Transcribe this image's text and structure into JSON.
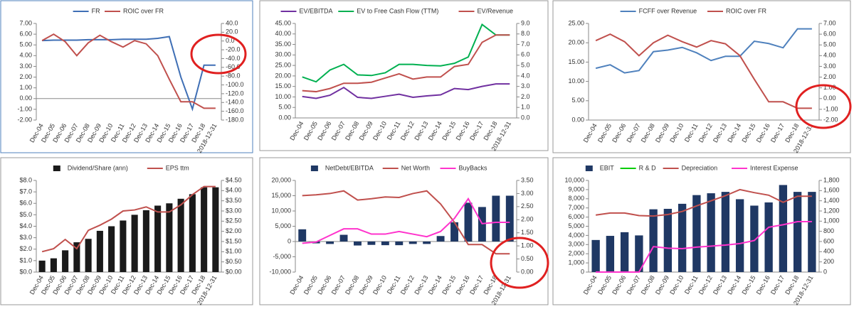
{
  "chart_data": [
    {
      "type": "line",
      "categories": [
        "Dec-04",
        "Dec-05",
        "Dec-06",
        "Dec-07",
        "Dec-08",
        "Dec-09",
        "Dec-10",
        "Dec-11",
        "Dec-12",
        "Dec-13",
        "Dec-14",
        "Dec-15",
        "Dec-16",
        "Dec-17",
        "Dec-18",
        "2018-12-31"
      ],
      "series": [
        {
          "name": "FR",
          "color": "#3f6fb5",
          "axis": "y2",
          "values": [
            1,
            2,
            2,
            2,
            3,
            3,
            3,
            4,
            4,
            4,
            6,
            10,
            -82,
            -155,
            -55,
            -55
          ]
        },
        {
          "name": "ROIC over FR",
          "color": "#c0504d",
          "values": [
            5.4,
            6.0,
            5.3,
            4.0,
            5.2,
            5.9,
            5.3,
            4.8,
            5.4,
            5.1,
            4.0,
            1.8,
            -0.3,
            -0.3,
            -0.9,
            -0.9
          ]
        }
      ],
      "ylim": [
        -2,
        7
      ],
      "yticks": [
        {
          "value": -2,
          "label": "-2.00"
        },
        {
          "value": -1,
          "label": "-1.00"
        },
        {
          "value": 0,
          "label": "0.00"
        },
        {
          "value": 1,
          "label": "1.00"
        },
        {
          "value": 2,
          "label": "2.00"
        },
        {
          "value": 3,
          "label": "3.00"
        },
        {
          "value": 4,
          "label": "4.00"
        },
        {
          "value": 5,
          "label": "5.00"
        },
        {
          "value": 6,
          "label": "6.00"
        },
        {
          "value": 7,
          "label": "7.00"
        }
      ],
      "y2lim": [
        -180,
        40
      ],
      "y2ticks": [
        {
          "value": -180,
          "label": "-180.0"
        },
        {
          "value": -160,
          "label": "-160.0"
        },
        {
          "value": -140,
          "label": "-140.0"
        },
        {
          "value": -120,
          "label": "-120.0"
        },
        {
          "value": -100,
          "label": "-100.0"
        },
        {
          "value": -80,
          "label": "-80.0"
        },
        {
          "value": -60,
          "label": "-60.0"
        },
        {
          "value": -40,
          "label": "-40.0"
        },
        {
          "value": -20,
          "label": "-20.0"
        },
        {
          "value": 0,
          "label": "0.0"
        },
        {
          "value": 20,
          "label": "20.0"
        },
        {
          "value": 40,
          "label": "40.0"
        }
      ]
    },
    {
      "type": "line",
      "categories": [
        "Dec-04",
        "Dec-05",
        "Dec-06",
        "Dec-07",
        "Dec-08",
        "Dec-09",
        "Dec-10",
        "Dec-11",
        "Dec-12",
        "Dec-13",
        "Dec-14",
        "Dec-15",
        "Dec-16",
        "Dec-17",
        "Dec-18",
        "2018-12-31"
      ],
      "series": [
        {
          "name": "EV/EBITDA",
          "color": "#7030a0",
          "values": [
            10.2,
            9.3,
            10.8,
            14.5,
            9.8,
            9.3,
            10.3,
            11.3,
            9.8,
            10.5,
            11,
            14,
            13.5,
            15,
            16.2,
            16.2
          ]
        },
        {
          "name": "EV to Free Cash Flow (TTM)",
          "color": "#00b050",
          "values": [
            19.5,
            17.2,
            22.8,
            25.5,
            20.5,
            20.2,
            21.5,
            25.5,
            25.5,
            25,
            24.8,
            26,
            29,
            44.5,
            39.5,
            39.5
          ]
        },
        {
          "name": "EV/Revenue",
          "color": "#c0504d",
          "axis": "y2",
          "values": [
            2.6,
            2.5,
            2.8,
            3.3,
            3.3,
            3.4,
            3.8,
            4.2,
            3.7,
            3.9,
            3.9,
            4.9,
            5.1,
            7.2,
            7.9,
            7.9
          ]
        }
      ],
      "ylim": [
        0,
        45
      ],
      "yticks": [
        {
          "value": 0,
          "label": "0.00"
        },
        {
          "value": 5,
          "label": "5.00"
        },
        {
          "value": 10,
          "label": "10.00"
        },
        {
          "value": 15,
          "label": "15.00"
        },
        {
          "value": 20,
          "label": "20.00"
        },
        {
          "value": 25,
          "label": "25.00"
        },
        {
          "value": 30,
          "label": "30.00"
        },
        {
          "value": 35,
          "label": "35.00"
        },
        {
          "value": 40,
          "label": "40.00"
        },
        {
          "value": 45,
          "label": "45.00"
        }
      ],
      "y2lim": [
        0,
        9
      ],
      "y2ticks": [
        {
          "value": 0,
          "label": "0.0"
        },
        {
          "value": 1,
          "label": "1.0"
        },
        {
          "value": 2,
          "label": "2.0"
        },
        {
          "value": 3,
          "label": "3.0"
        },
        {
          "value": 4,
          "label": "4.0"
        },
        {
          "value": 5,
          "label": "5.0"
        },
        {
          "value": 6,
          "label": "6.0"
        },
        {
          "value": 7,
          "label": "7.0"
        },
        {
          "value": 8,
          "label": "8.0"
        },
        {
          "value": 9,
          "label": "9.0"
        }
      ]
    },
    {
      "type": "line",
      "categories": [
        "Dec-04",
        "Dec-05",
        "Dec-06",
        "Dec-07",
        "Dec-08",
        "Dec-09",
        "Dec-10",
        "Dec-11",
        "Dec-12",
        "Dec-13",
        "Dec-14",
        "Dec-15",
        "Dec-16",
        "Dec-17",
        "Dec-18",
        "2018-12-31"
      ],
      "series": [
        {
          "name": "FCFF over Revenue",
          "color": "#4f81bd",
          "values": [
            13.4,
            14.3,
            12.2,
            12.8,
            17.7,
            18.1,
            18.8,
            17.4,
            15.4,
            16.5,
            16.5,
            20.4,
            19.8,
            18.7,
            23.6,
            23.6
          ]
        },
        {
          "name": "ROIC over FR",
          "color": "#c0504d",
          "axis": "y2",
          "values": [
            5.4,
            6.0,
            5.3,
            4.0,
            5.2,
            5.9,
            5.3,
            4.8,
            5.4,
            5.1,
            4.0,
            1.8,
            -0.3,
            -0.3,
            -0.9,
            -0.9
          ]
        }
      ],
      "ylim": [
        0,
        25
      ],
      "yticks": [
        {
          "value": 0,
          "label": "0.00"
        },
        {
          "value": 5,
          "label": "5.00"
        },
        {
          "value": 10,
          "label": "10.00"
        },
        {
          "value": 15,
          "label": "15.00"
        },
        {
          "value": 20,
          "label": "20.00"
        },
        {
          "value": 25,
          "label": "25.00"
        }
      ],
      "y2lim": [
        -2,
        7
      ],
      "y2ticks": [
        {
          "value": -2,
          "label": "-2.00"
        },
        {
          "value": -1,
          "label": "-1.00"
        },
        {
          "value": 0,
          "label": "0.00"
        },
        {
          "value": 1,
          "label": "1.00"
        },
        {
          "value": 2,
          "label": "2.00"
        },
        {
          "value": 3,
          "label": "3.00"
        },
        {
          "value": 4,
          "label": "4.00"
        },
        {
          "value": 5,
          "label": "5.00"
        },
        {
          "value": 6,
          "label": "6.00"
        },
        {
          "value": 7,
          "label": "7.00"
        }
      ]
    },
    {
      "type": "combo",
      "categories": [
        "Dec-04",
        "Dec-05",
        "Dec-06",
        "Dec-07",
        "Dec-08",
        "Dec-09",
        "Dec-10",
        "Dec-11",
        "Dec-12",
        "Dec-13",
        "Dec-14",
        "Dec-15",
        "Dec-16",
        "Dec-17",
        "Dec-18",
        "2018-12-31"
      ],
      "series": [
        {
          "name": "Dividend/Share (ann)",
          "type": "bar",
          "color": "#1a1a1a",
          "values": [
            1.0,
            1.2,
            1.9,
            2.6,
            2.9,
            3.6,
            4.0,
            4.5,
            5.0,
            5.4,
            5.8,
            6.0,
            6.4,
            6.8,
            7.4,
            7.4
          ]
        },
        {
          "name": "EPS ttm",
          "type": "line",
          "color": "#c0504d",
          "axis": "y2",
          "values": [
            1.0,
            1.15,
            1.6,
            1.15,
            2.05,
            2.3,
            2.6,
            3.0,
            3.05,
            3.2,
            2.95,
            2.95,
            3.3,
            3.8,
            4.2,
            4.2
          ]
        }
      ],
      "ylim": [
        0,
        8
      ],
      "yticks": [
        {
          "value": 0,
          "label": "$0.0"
        },
        {
          "value": 1,
          "label": "$1.0"
        },
        {
          "value": 2,
          "label": "$2.0"
        },
        {
          "value": 3,
          "label": "$3.0"
        },
        {
          "value": 4,
          "label": "$4.0"
        },
        {
          "value": 5,
          "label": "$5.0"
        },
        {
          "value": 6,
          "label": "$6.0"
        },
        {
          "value": 7,
          "label": "$7.0"
        },
        {
          "value": 8,
          "label": "$8.0"
        }
      ],
      "y2lim": [
        0,
        4.5
      ],
      "y2ticks": [
        {
          "value": 0,
          "label": "$0.00"
        },
        {
          "value": 0.5,
          "label": "$0.50"
        },
        {
          "value": 1,
          "label": "$1.00"
        },
        {
          "value": 1.5,
          "label": "$1.50"
        },
        {
          "value": 2,
          "label": "$2.00"
        },
        {
          "value": 2.5,
          "label": "$2.50"
        },
        {
          "value": 3,
          "label": "$3.00"
        },
        {
          "value": 3.5,
          "label": "$3.50"
        },
        {
          "value": 4,
          "label": "$4.00"
        },
        {
          "value": 4.5,
          "label": "$4.50"
        }
      ]
    },
    {
      "type": "combo",
      "categories": [
        "Dec-04",
        "Dec-05",
        "Dec-06",
        "Dec-07",
        "Dec-08",
        "Dec-09",
        "Dec-10",
        "Dec-11",
        "Dec-12",
        "Dec-13",
        "Dec-14",
        "Dec-15",
        "Dec-16",
        "Dec-17",
        "Dec-18",
        "2018-12-31"
      ],
      "series": [
        {
          "name": "NetDebt/EBITDA",
          "type": "bar",
          "color": "#1f3864",
          "values": [
            4000,
            -600,
            -800,
            2200,
            -1300,
            -1100,
            -1200,
            -1200,
            -800,
            -800,
            1800,
            6300,
            12700,
            11300,
            15000,
            15000
          ]
        },
        {
          "name": "Net Worth",
          "type": "line",
          "color": "#c0504d",
          "axis": "y2",
          "values": [
            2.92,
            2.95,
            3.0,
            3.1,
            2.75,
            2.8,
            2.87,
            2.85,
            3.0,
            3.1,
            2.6,
            1.9,
            1.05,
            1.05,
            0.7,
            0.7
          ]
        },
        {
          "name": "BuyBacks",
          "type": "line",
          "color": "#ff33cc",
          "axis": "y2",
          "values": [
            1.1,
            1.15,
            1.4,
            1.65,
            1.65,
            1.45,
            1.45,
            1.55,
            1.45,
            1.35,
            1.55,
            2.05,
            2.8,
            1.85,
            1.9,
            1.9
          ]
        }
      ],
      "ylim": [
        -10000,
        20000
      ],
      "yticks": [
        {
          "value": -10000,
          "label": "-10,000"
        },
        {
          "value": -5000,
          "label": "-5,000"
        },
        0,
        {
          "value": 5000,
          "label": "5,000"
        },
        {
          "value": 10000,
          "label": "10,000"
        },
        {
          "value": 15000,
          "label": "15,000"
        },
        {
          "value": 20000,
          "label": "20,000"
        }
      ],
      "y2lim": [
        0,
        3.5
      ],
      "y2ticks": [
        {
          "value": 0,
          "label": "0.00"
        },
        {
          "value": 0.5,
          "label": "0.50"
        },
        {
          "value": 1,
          "label": "1.00"
        },
        {
          "value": 1.5,
          "label": "1.50"
        },
        {
          "value": 2,
          "label": "2.00"
        },
        {
          "value": 2.5,
          "label": "2.50"
        },
        {
          "value": 3,
          "label": "3.00"
        },
        {
          "value": 3.5,
          "label": "3.50"
        }
      ]
    },
    {
      "type": "combo",
      "categories": [
        "Dec-04",
        "Dec-05",
        "Dec-06",
        "Dec-07",
        "Dec-08",
        "Dec-09",
        "Dec-10",
        "Dec-11",
        "Dec-12",
        "Dec-13",
        "Dec-14",
        "Dec-15",
        "Dec-16",
        "Dec-17",
        "Dec-18",
        "2018-12-31"
      ],
      "series": [
        {
          "name": "EBIT",
          "type": "bar",
          "color": "#1f3864",
          "values": [
            3500,
            3950,
            4350,
            4000,
            6850,
            6900,
            7450,
            8400,
            8600,
            8750,
            7950,
            7250,
            7600,
            9500,
            8750,
            8750
          ]
        },
        {
          "name": "R & D",
          "type": "line",
          "color": "#00cc00",
          "axis": "y2",
          "values": [
            null,
            null,
            null,
            null,
            null,
            null,
            null,
            null,
            null,
            null,
            null,
            null,
            null,
            null,
            null,
            null
          ]
        },
        {
          "name": "Depreciation",
          "type": "line",
          "color": "#c0504d",
          "axis": "y2",
          "values": [
            1120,
            1160,
            1160,
            1110,
            1100,
            1130,
            1190,
            1300,
            1400,
            1500,
            1620,
            1560,
            1510,
            1370,
            1490,
            1490
          ]
        },
        {
          "name": "Interest Expense",
          "type": "line",
          "color": "#ff33cc",
          "axis": "y2",
          "values": [
            0,
            0,
            0,
            0,
            500,
            470,
            460,
            490,
            510,
            530,
            560,
            620,
            880,
            930,
            990,
            990
          ]
        }
      ],
      "ylim": [
        0,
        10000
      ],
      "yticks": [
        0,
        {
          "value": 1000,
          "label": "1,000"
        },
        {
          "value": 2000,
          "label": "2,000"
        },
        {
          "value": 3000,
          "label": "3,000"
        },
        {
          "value": 4000,
          "label": "4,000"
        },
        {
          "value": 5000,
          "label": "5,000"
        },
        {
          "value": 6000,
          "label": "6,000"
        },
        {
          "value": 7000,
          "label": "7,000"
        },
        {
          "value": 8000,
          "label": "8,000"
        },
        {
          "value": 9000,
          "label": "9,000"
        },
        {
          "value": 10000,
          "label": "10,000"
        }
      ],
      "y2lim": [
        0,
        1800
      ],
      "y2ticks": [
        0,
        200,
        400,
        600,
        800,
        {
          "value": 1000,
          "label": "1,000"
        },
        {
          "value": 1200,
          "label": "1,200"
        },
        {
          "value": 1400,
          "label": "1,400"
        },
        {
          "value": 1600,
          "label": "1,600"
        },
        {
          "value": 1800,
          "label": "1,800"
        }
      ]
    }
  ]
}
